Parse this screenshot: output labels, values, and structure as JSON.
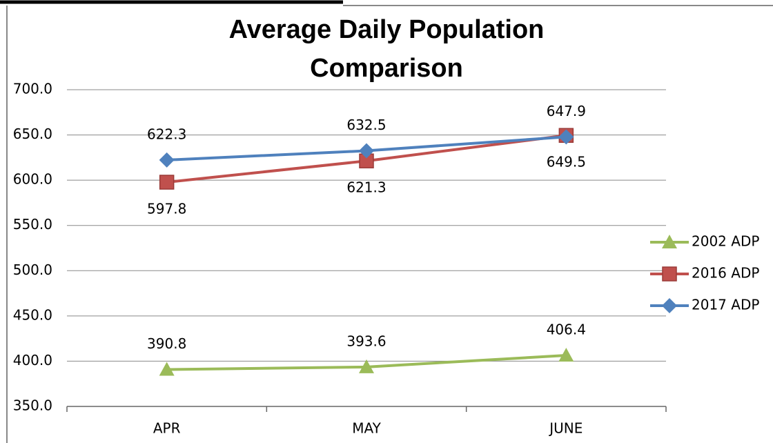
{
  "chart_data": {
    "type": "line",
    "title": "Average Daily Population Comparison",
    "categories": [
      "APR",
      "MAY",
      "JUNE"
    ],
    "series": [
      {
        "name": "2002 ADP",
        "color": "#9bbb59",
        "marker": "triangle",
        "values": [
          390.8,
          393.6,
          406.4
        ]
      },
      {
        "name": "2016 ADP",
        "color": "#c0504d",
        "marker": "square",
        "values": [
          597.8,
          621.3,
          649.5
        ]
      },
      {
        "name": "2017 ADP",
        "color": "#4f81bd",
        "marker": "diamond",
        "values": [
          622.3,
          632.5,
          647.9
        ]
      }
    ],
    "ylim": [
      350,
      700
    ],
    "yticks": [
      {
        "value": 350,
        "label": "350.0"
      },
      {
        "value": 400,
        "label": "400.0"
      },
      {
        "value": 450,
        "label": "450.0"
      },
      {
        "value": 500,
        "label": "500.0"
      },
      {
        "value": 550,
        "label": "550.0"
      },
      {
        "value": 600,
        "label": "600.0"
      },
      {
        "value": 650,
        "label": "650.0"
      },
      {
        "value": 700,
        "label": "700.0"
      }
    ],
    "grid": true,
    "legend": "right",
    "data_labels": true
  }
}
